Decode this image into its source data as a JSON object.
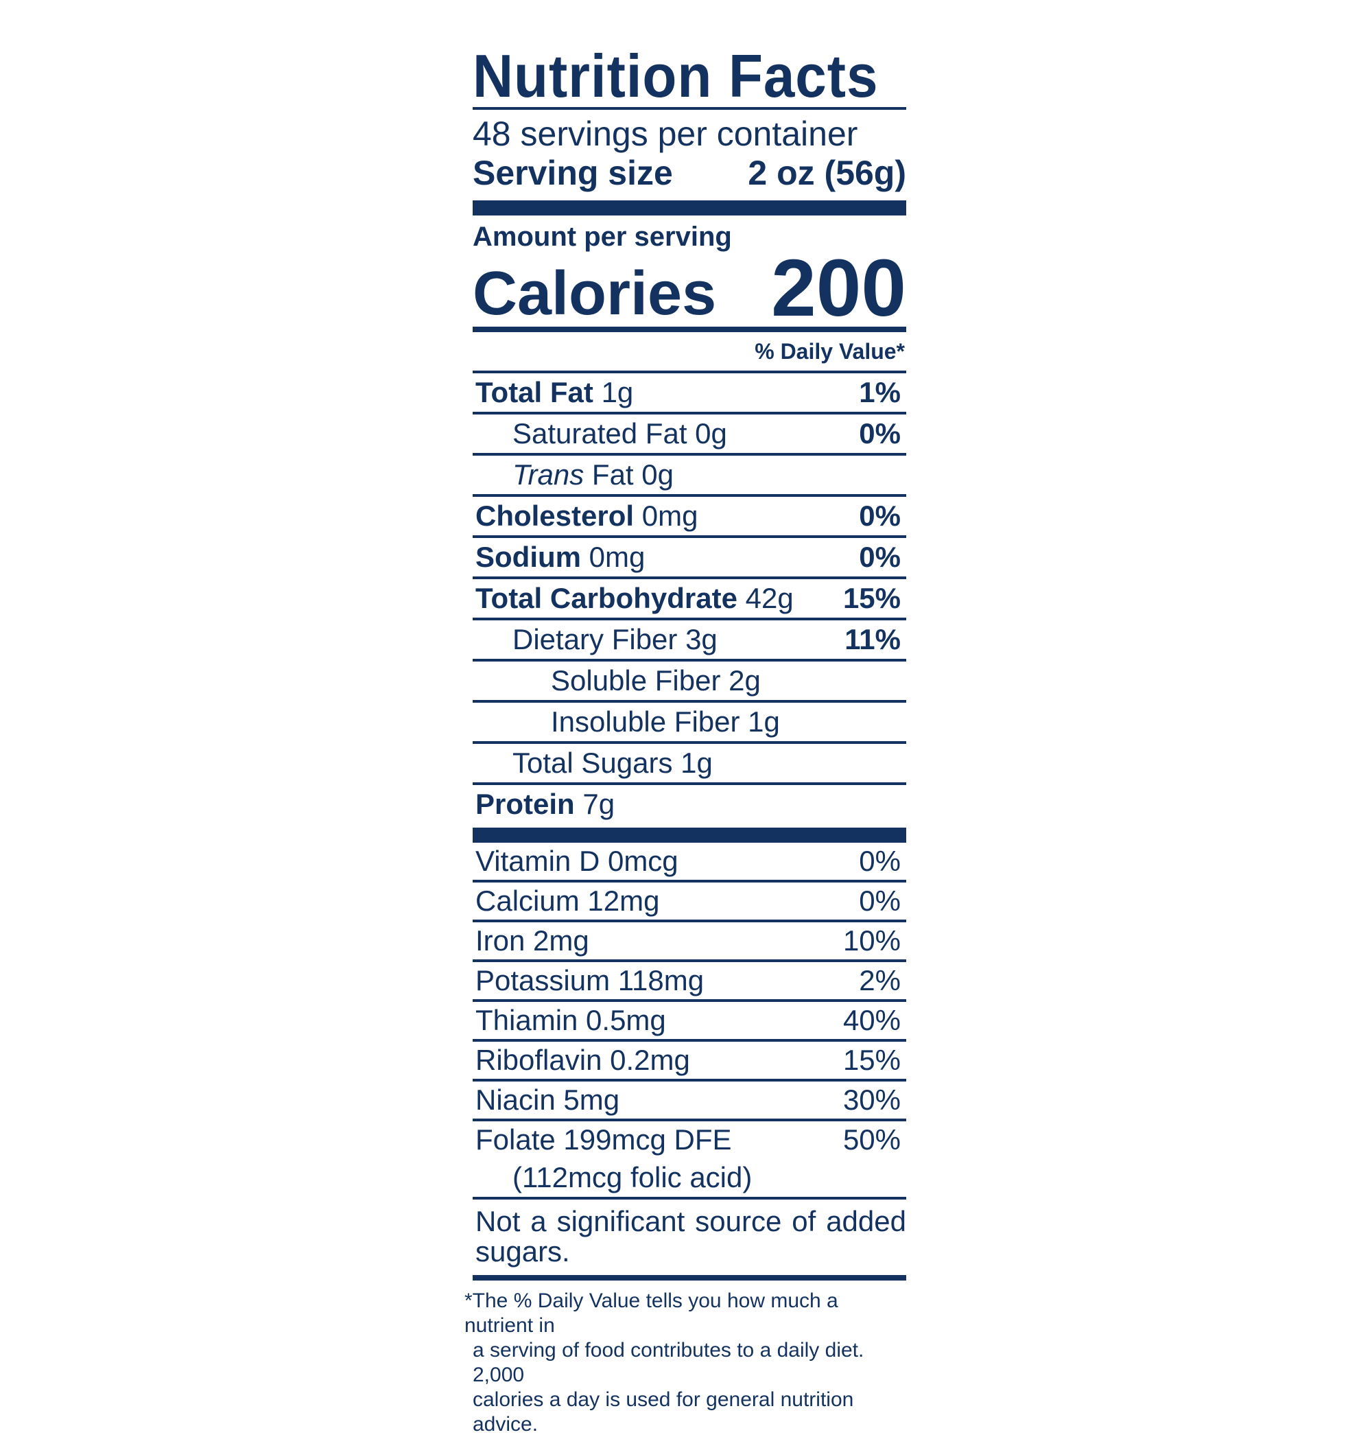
{
  "label": {
    "title": "Nutrition Facts",
    "servings_per_container": "48 servings per container",
    "serving_size_label": "Serving size",
    "serving_size_value": "2 oz (56g)",
    "amount_per_serving": "Amount per serving",
    "calories_label": "Calories",
    "calories_value": "200",
    "daily_value_header": "% Daily Value*",
    "nutrients": [
      {
        "name": "Total Fat",
        "amount": "1g",
        "dv": "1%"
      },
      {
        "name": "Saturated Fat",
        "amount": "0g",
        "dv": "0%"
      },
      {
        "name": "Trans",
        "name_rest": "Fat",
        "amount": "0g",
        "dv": ""
      },
      {
        "name": "Cholesterol",
        "amount": "0mg",
        "dv": "0%"
      },
      {
        "name": "Sodium",
        "amount": "0mg",
        "dv": "0%"
      },
      {
        "name": "Total Carbohydrate",
        "amount": "42g",
        "dv": "15%"
      },
      {
        "name": "Dietary Fiber",
        "amount": "3g",
        "dv": "11%"
      },
      {
        "name": "Soluble Fiber",
        "amount": "2g",
        "dv": ""
      },
      {
        "name": "Insoluble Fiber",
        "amount": "1g",
        "dv": ""
      },
      {
        "name": "Total Sugars",
        "amount": "1g",
        "dv": ""
      },
      {
        "name": "Protein",
        "amount": "7g",
        "dv": ""
      }
    ],
    "vitamins": [
      {
        "text": "Vitamin D 0mcg",
        "dv": "0%"
      },
      {
        "text": "Calcium 12mg",
        "dv": "0%"
      },
      {
        "text": "Iron 2mg",
        "dv": "10%"
      },
      {
        "text": "Potassium 118mg",
        "dv": "2%"
      },
      {
        "text": "Thiamin 0.5mg",
        "dv": "40%"
      },
      {
        "text": "Riboflavin 0.2mg",
        "dv": "15%"
      },
      {
        "text": "Niacin 5mg",
        "dv": "30%"
      },
      {
        "text": "Folate 199mcg DFE",
        "dv": "50%"
      }
    ],
    "folic_acid": "(112mcg folic acid)",
    "added_sugars_note": "Not a significant source of added sugars.",
    "footnote": [
      "*The % Daily Value tells you how much a nutrient in",
      "a serving of food contributes to a daily diet. 2,000",
      "calories a day is used for general nutrition advice."
    ],
    "colors": {
      "ink": "#13325f",
      "background": "#ffffff"
    }
  }
}
